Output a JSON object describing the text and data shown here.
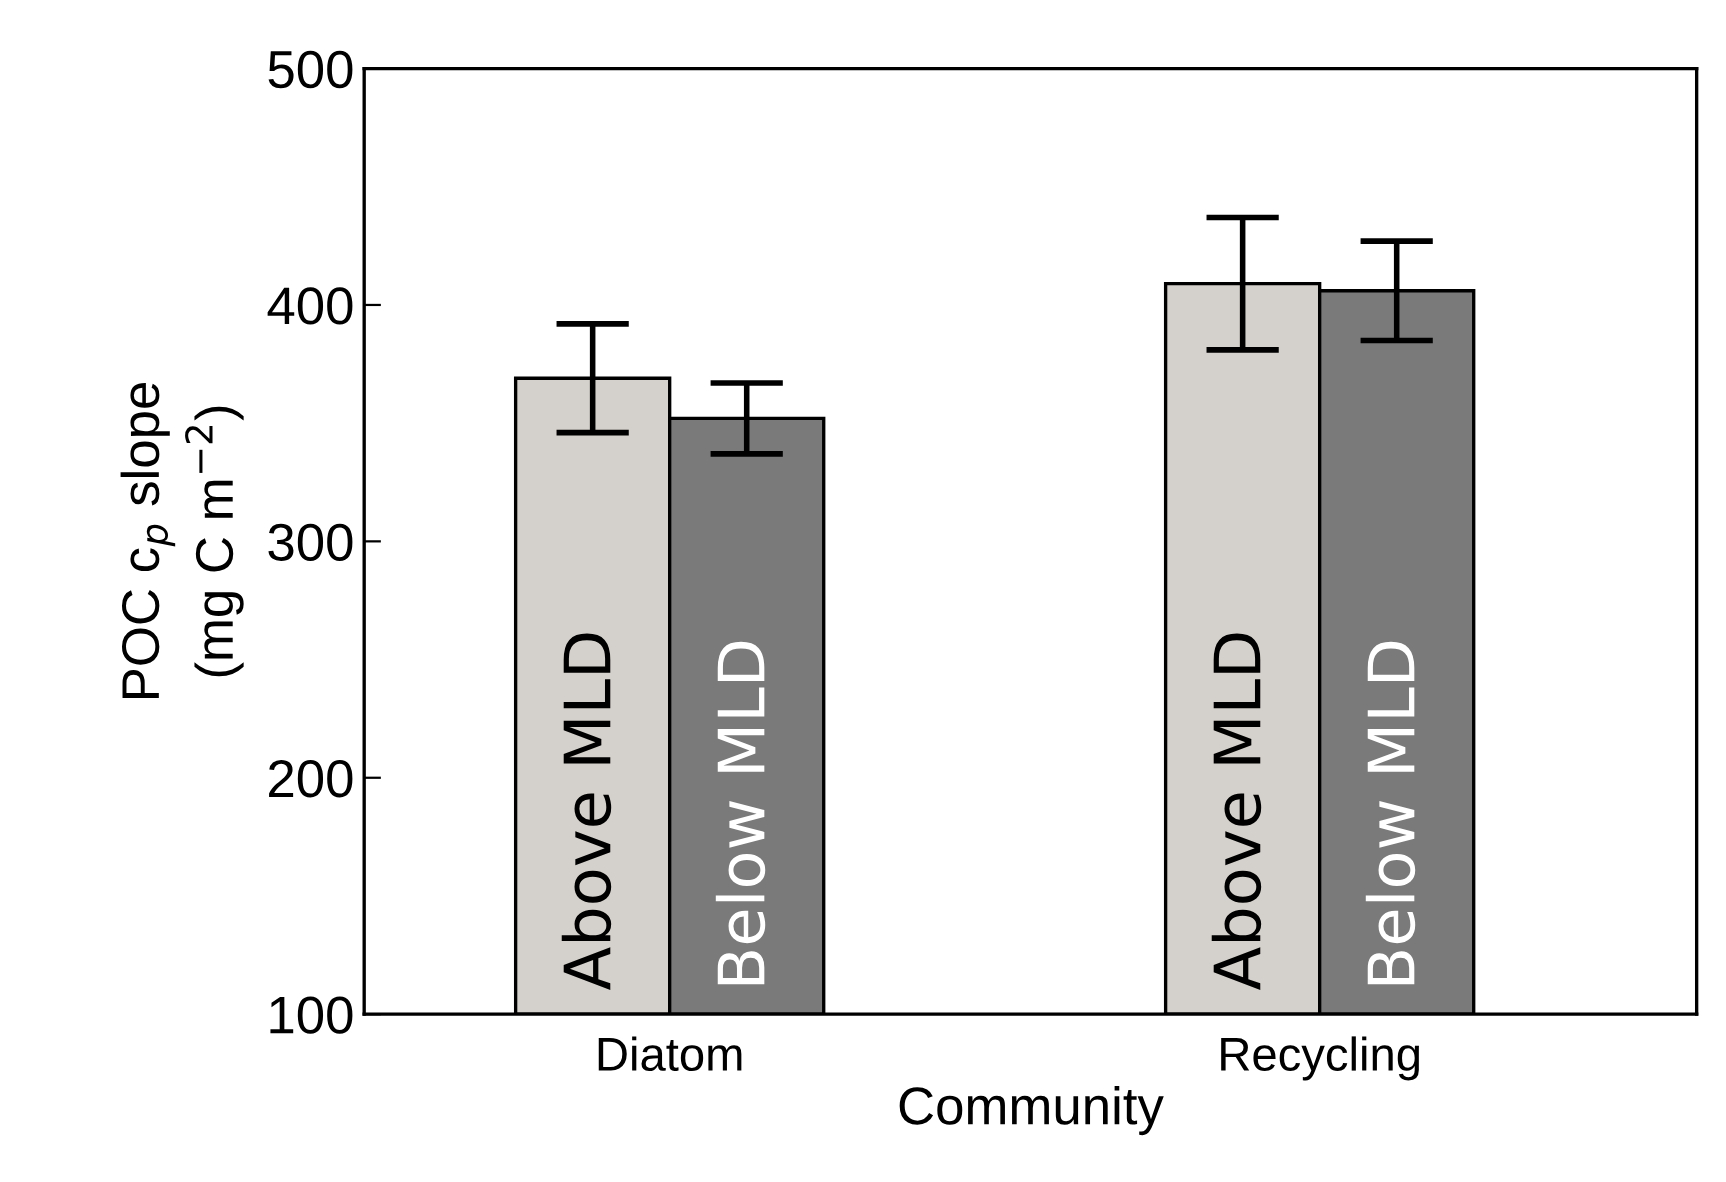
{
  "chart_data": {
    "type": "bar",
    "xlabel": "Community",
    "ylabel": "POC c$_{p}$ slope\n(mg C m$^{−2}$)",
    "categories": [
      "Diatom",
      "Recycling"
    ],
    "series": [
      {
        "name": "Above MLD",
        "color": "#d4d0cb",
        "values": [
          369,
          409
        ],
        "errors": [
          23,
          28
        ]
      },
      {
        "name": "Below MLD",
        "color": "#7a7a7a",
        "values": [
          352,
          406
        ],
        "errors": [
          15,
          21
        ]
      }
    ],
    "ylim": [
      100,
      500
    ],
    "yticks": [
      100,
      200,
      300,
      400,
      500
    ],
    "grid": false,
    "legend": false
  }
}
